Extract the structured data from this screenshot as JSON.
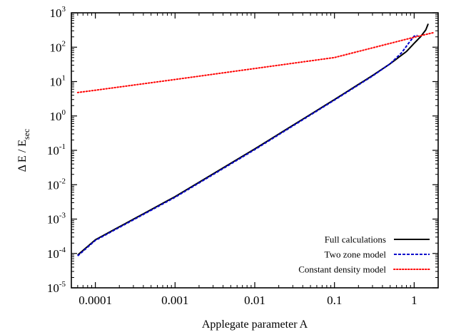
{
  "chart_data": {
    "type": "line",
    "title": "",
    "xlabel": "Applegate parameter A",
    "ylabel": {
      "main": "Δ E / E",
      "subscript": "sec"
    },
    "x_scale": "log",
    "y_scale": "log",
    "xlim": [
      5e-05,
      2.0
    ],
    "ylim": [
      1e-05,
      1000
    ],
    "x_ticks": [
      {
        "value": 0.0001,
        "label": "0.0001"
      },
      {
        "value": 0.001,
        "label": "0.001"
      },
      {
        "value": 0.01,
        "label": "0.01"
      },
      {
        "value": 0.1,
        "label": "0.1"
      },
      {
        "value": 1,
        "label": "1"
      }
    ],
    "y_ticks": [
      {
        "value": 1e-05,
        "base": "10",
        "exp": "-5"
      },
      {
        "value": 0.0001,
        "base": "10",
        "exp": "-4"
      },
      {
        "value": 0.001,
        "base": "10",
        "exp": "-3"
      },
      {
        "value": 0.01,
        "base": "10",
        "exp": "-2"
      },
      {
        "value": 0.1,
        "base": "10",
        "exp": "-1"
      },
      {
        "value": 1,
        "base": "10",
        "exp": "0"
      },
      {
        "value": 10,
        "base": "10",
        "exp": "1"
      },
      {
        "value": 100,
        "base": "10",
        "exp": "2"
      },
      {
        "value": 1000,
        "base": "10",
        "exp": "3"
      }
    ],
    "grid": false,
    "legend_position": "bottom-right",
    "series": [
      {
        "name": "Full calculations",
        "color": "#000000",
        "dash": "solid",
        "x": [
          6e-05,
          0.0001,
          0.001,
          0.01,
          0.1,
          0.3,
          0.5,
          0.8,
          1.0,
          1.2,
          1.4,
          1.5
        ],
        "y": [
          9e-05,
          0.00025,
          0.0045,
          0.11,
          3.0,
          15,
          33,
          75,
          130,
          200,
          320,
          480
        ]
      },
      {
        "name": "Two zone model",
        "color": "#0000cc",
        "dash": "dashed",
        "x": [
          6e-05,
          0.0001,
          0.001,
          0.01,
          0.1,
          0.3,
          0.5,
          0.7,
          0.85,
          1.0,
          1.1
        ],
        "y": [
          8.5e-05,
          0.00024,
          0.0043,
          0.105,
          2.9,
          14.5,
          33,
          70,
          130,
          210,
          220
        ]
      },
      {
        "name": "Constant density model",
        "color": "#ff0000",
        "dash": "dotted",
        "x": [
          6e-05,
          0.0001,
          0.001,
          0.01,
          0.1,
          1.0,
          1.8
        ],
        "y": [
          4.8,
          5.6,
          11.5,
          24,
          50,
          195,
          270
        ]
      }
    ]
  }
}
